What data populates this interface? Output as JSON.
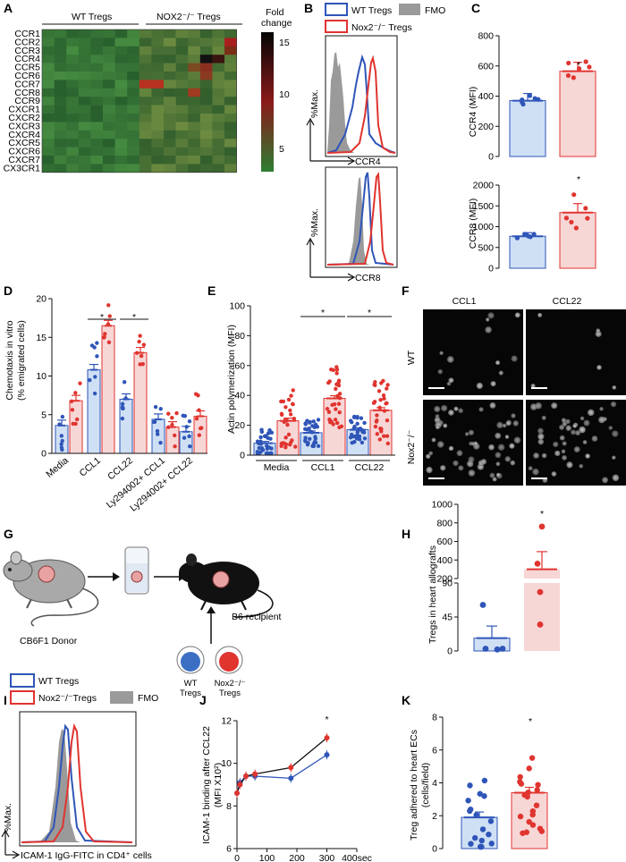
{
  "panels": {
    "A": "A",
    "B": "B",
    "C": "C",
    "D": "D",
    "E": "E",
    "F": "F",
    "G": "G",
    "H": "H",
    "I": "I",
    "J": "J",
    "K": "K"
  },
  "colors": {
    "wt": "#2f55b8",
    "nox": "#e0342f",
    "wt_fill": "#cfe0f5",
    "nox_fill": "#f7d6d6",
    "fmo": "#9a9a9a"
  },
  "panel_a": {
    "group_wt": "WT Tregs",
    "group_nox": "NOX2⁻/⁻ Tregs",
    "rows": [
      "CCR1",
      "CCR2",
      "CCR3",
      "CCR4",
      "CCR5",
      "CCR6",
      "CCR7",
      "CCR8",
      "CCR9",
      "CXCR1",
      "CXCR2",
      "CXCR3",
      "CXCR4",
      "CXCR5",
      "CXCR6",
      "CXCR7",
      "CX3CR1"
    ],
    "scale_title_1": "Fold",
    "scale_title_2": "change",
    "scale_ticks": [
      "15",
      "10",
      "5"
    ]
  },
  "panel_b": {
    "legend_wt": "WT Tregs",
    "legend_fmo": "FMO",
    "legend_nox": "Nox2⁻/⁻ Tregs",
    "ylabel": "%Max.",
    "xlabel_top": "CCR4",
    "xlabel_bottom": "CCR8"
  },
  "panel_c": {
    "ylabel_top": "CCR4 (MFI)",
    "ylabel_bottom": "CCR8 (MFI)",
    "ticks_top": [
      "800",
      "600",
      "400",
      "200",
      "0"
    ],
    "ticks_bottom": [
      "2000",
      "1500",
      "1000",
      "500",
      "0"
    ],
    "star": "*"
  },
  "panel_d": {
    "ylabel_1": "Chemotaxis in vitro",
    "ylabel_2": "(% emigrated cells)",
    "ticks": [
      "20",
      "15",
      "10",
      "5",
      "0"
    ],
    "categories": [
      "Media",
      "CCL1",
      "CCL22",
      "Ly294002+ CCL1",
      "Ly294002+ CCL22"
    ],
    "star": "*"
  },
  "panel_e": {
    "ylabel": "Actin polymerization (MFI)",
    "ticks": [
      "100",
      "80",
      "60",
      "40",
      "20",
      "0"
    ],
    "categories": [
      "Media",
      "CCL1",
      "CCL22"
    ],
    "star": "*"
  },
  "panel_f": {
    "col1": "CCL1",
    "col2": "CCL22",
    "row1": "WT",
    "row2": "Nox2⁻/⁻"
  },
  "panel_g": {
    "donor": "CB6F1 Donor",
    "recipient": "B6 recipient",
    "wt": "WT",
    "wt2": "Tregs",
    "nox": "Nox2⁻/⁻",
    "nox2": "Tregs"
  },
  "panel_h": {
    "ylabel": "Tregs in heart allografts",
    "ticks_top": [
      "1000",
      "800",
      "600",
      "400",
      "200"
    ],
    "ticks_bottom": [
      "90",
      "45",
      "0"
    ],
    "star": "*"
  },
  "panel_i": {
    "legend_wt": "WT Tregs",
    "legend_nox": "Nox2⁻/⁻Tregs",
    "legend_fmo": "FMO",
    "ylabel": "%Max.",
    "xlabel": "ICAM-1 IgG-FITC in CD4⁺ cells"
  },
  "panel_j": {
    "ylabel_1": "ICAM-1 binding after CCL22",
    "ylabel_2": "(MFI X10²)",
    "yticks": [
      "12",
      "10",
      "8",
      "6"
    ],
    "xticks": [
      "0",
      "100",
      "200",
      "300",
      "400sec"
    ],
    "star": "*"
  },
  "panel_k": {
    "ylabel_1": "Treg adhered to heart ECs",
    "ylabel_2": "(cells/field)",
    "ticks": [
      "8",
      "6",
      "4",
      "2",
      "0"
    ],
    "star": "*"
  },
  "chart_data": [
    {
      "panel": "C-top",
      "type": "bar",
      "categories": [
        "WT Tregs",
        "Nox2-/- Tregs"
      ],
      "values": [
        370,
        565
      ],
      "ylabel": "CCR4 (MFI)",
      "ylim": [
        0,
        800
      ]
    },
    {
      "panel": "C-bottom",
      "type": "bar",
      "categories": [
        "WT Tregs",
        "Nox2-/- Tregs"
      ],
      "values": [
        770,
        1340
      ],
      "ylabel": "CCR8 (MFI)",
      "ylim": [
        0,
        2000
      ]
    },
    {
      "panel": "D",
      "type": "bar",
      "categories": [
        "Media",
        "CCL1",
        "CCL22",
        "Ly294002+ CCL1",
        "Ly294002+ CCL22"
      ],
      "series": [
        {
          "values": [
            3.6,
            10.8,
            7.0,
            4.4,
            2.8
          ]
        },
        {
          "values": [
            6.8,
            16.5,
            13.0,
            3.4,
            4.8
          ]
        }
      ],
      "ylabel": "Chemotaxis in vitro (% emigrated cells)",
      "ylim": [
        0,
        20
      ]
    },
    {
      "panel": "E",
      "type": "bar",
      "categories": [
        "Media",
        "CCL1",
        "CCL22"
      ],
      "series": [
        {
          "values": [
            8,
            15,
            17
          ]
        },
        {
          "values": [
            23,
            38,
            30
          ]
        }
      ],
      "ylabel": "Actin polymerization (MFI)",
      "ylim": [
        0,
        100
      ]
    },
    {
      "panel": "H",
      "type": "bar",
      "categories": [
        "WT Tregs",
        "Nox2-/- Tregs"
      ],
      "values": [
        17,
        300
      ],
      "ylabel": "Tregs in heart allografts"
    },
    {
      "panel": "J",
      "type": "line",
      "x": [
        0,
        10,
        30,
        60,
        180,
        300
      ],
      "series": [
        {
          "values": [
            8.6,
            9.1,
            9.4,
            9.4,
            9.3,
            10.4
          ]
        },
        {
          "values": [
            8.6,
            9.0,
            9.4,
            9.5,
            9.8,
            11.2
          ]
        }
      ],
      "xlabel": "sec",
      "ylabel": "ICAM-1 binding after CCL22 (MFI X10²)",
      "ylim": [
        6,
        12
      ],
      "xlim": [
        0,
        400
      ]
    },
    {
      "panel": "K",
      "type": "bar",
      "categories": [
        "WT Tregs",
        "Nox2-/- Tregs"
      ],
      "values": [
        1.9,
        3.4
      ],
      "ylabel": "Treg adhered to heart ECs (cells/field)",
      "ylim": [
        0,
        8
      ]
    }
  ]
}
